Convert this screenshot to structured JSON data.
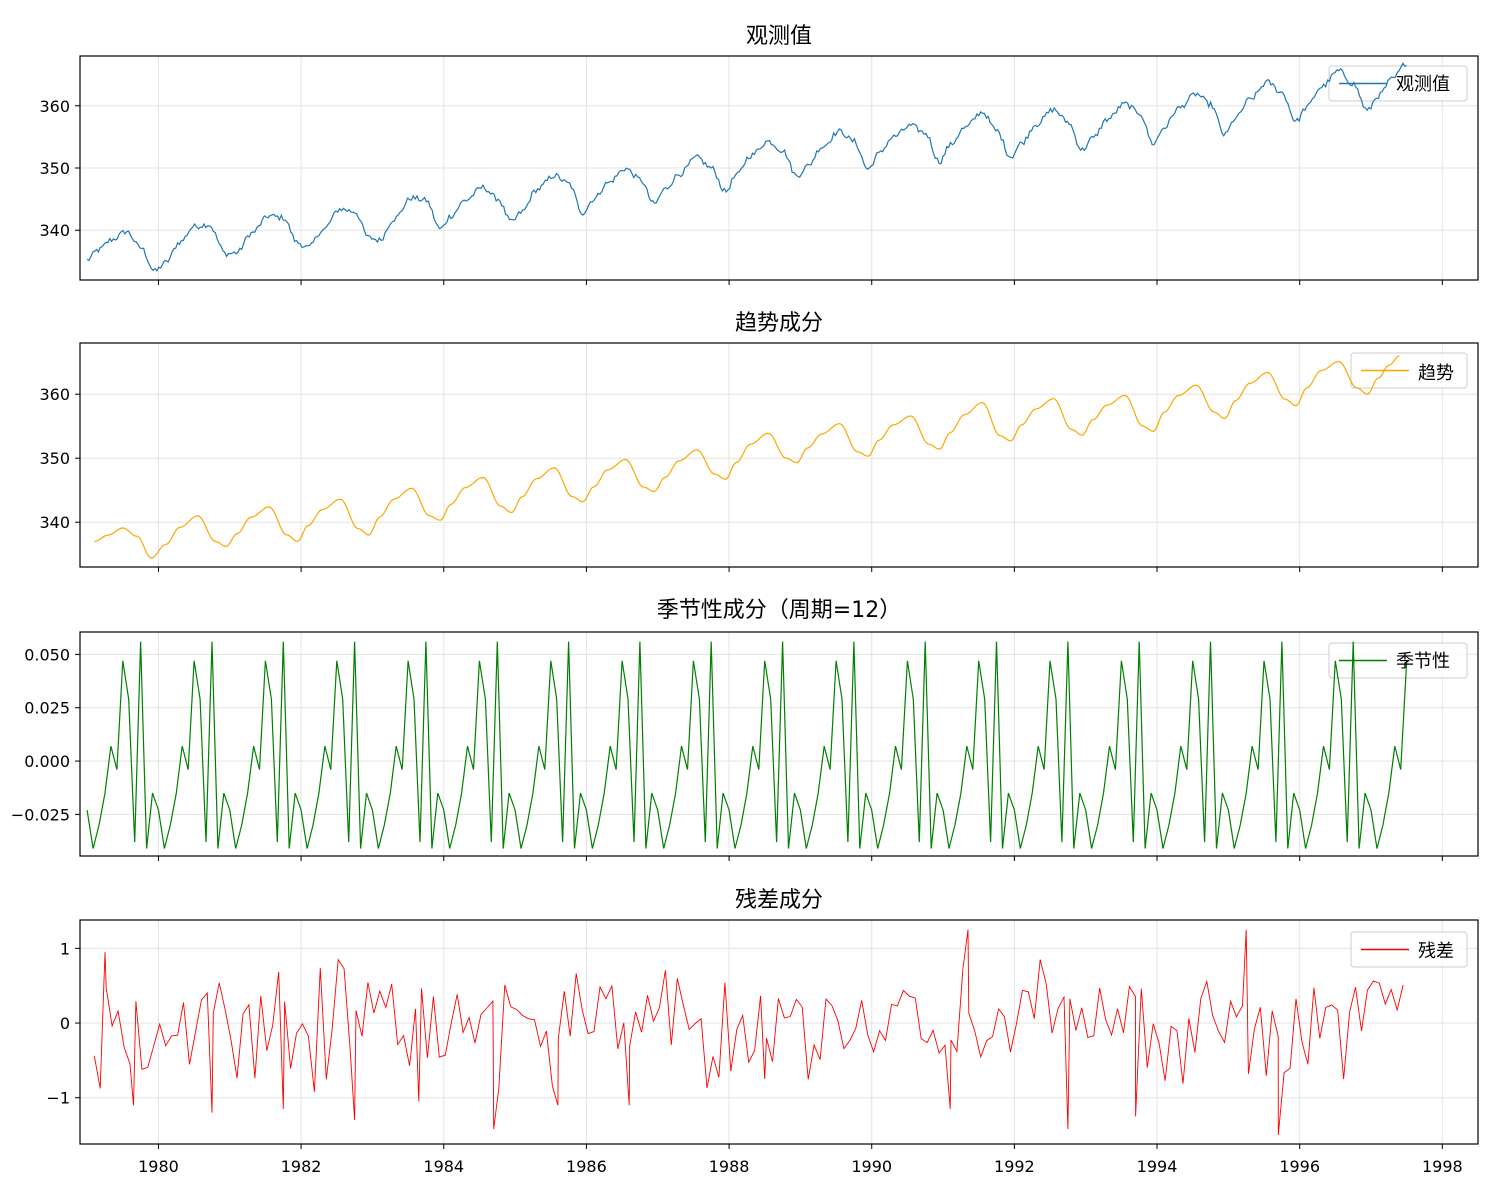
{
  "chart_data": [
    {
      "type": "line",
      "title": "观测值",
      "xlabel": "",
      "ylabel": "",
      "xlim": [
        1978.9,
        1998.5
      ],
      "ylim": [
        332,
        368
      ],
      "yticks": [
        340,
        350,
        360
      ],
      "xticks": [
        1980,
        1982,
        1984,
        1986,
        1988,
        1990,
        1992,
        1994,
        1996,
        1998
      ],
      "show_xtick_labels": false,
      "grid": true,
      "legend_position": "top-right",
      "series": [
        {
          "name": "观测值",
          "color": "#1f77b4",
          "x_start": 1979.0,
          "x_end": 1997.5,
          "points": [
            [
              1979.0,
              335.2
            ],
            [
              1979.15,
              336.8
            ],
            [
              1979.35,
              338.5
            ],
            [
              1979.55,
              339.8
            ],
            [
              1979.75,
              337.2
            ],
            [
              1979.95,
              333.4
            ],
            [
              1980.1,
              334.8
            ],
            [
              1980.3,
              338.1
            ],
            [
              1980.5,
              340.6
            ],
            [
              1980.7,
              340.9
            ],
            [
              1980.95,
              336.2
            ],
            [
              1981.1,
              336.4
            ],
            [
              1981.3,
              339.5
            ],
            [
              1981.55,
              342.3
            ],
            [
              1981.75,
              342.0
            ],
            [
              1981.95,
              338.0
            ],
            [
              1982.1,
              337.2
            ],
            [
              1982.3,
              340.0
            ],
            [
              1982.55,
              343.4
            ],
            [
              1982.75,
              343.0
            ],
            [
              1982.95,
              338.8
            ],
            [
              1983.1,
              338.4
            ],
            [
              1983.3,
              341.8
            ],
            [
              1983.55,
              345.2
            ],
            [
              1983.75,
              344.8
            ],
            [
              1983.95,
              340.2
            ],
            [
              1984.1,
              342.3
            ],
            [
              1984.3,
              344.8
            ],
            [
              1984.55,
              346.9
            ],
            [
              1984.75,
              345.1
            ],
            [
              1984.95,
              341.3
            ],
            [
              1985.1,
              343.0
            ],
            [
              1985.3,
              346.5
            ],
            [
              1985.55,
              348.8
            ],
            [
              1985.75,
              347.5
            ],
            [
              1985.95,
              342.8
            ],
            [
              1986.1,
              345.0
            ],
            [
              1986.3,
              347.6
            ],
            [
              1986.55,
              349.9
            ],
            [
              1986.75,
              348.2
            ],
            [
              1986.95,
              344.2
            ],
            [
              1987.1,
              346.6
            ],
            [
              1987.3,
              349.0
            ],
            [
              1987.55,
              351.7
            ],
            [
              1987.75,
              350.0
            ],
            [
              1987.95,
              346.2
            ],
            [
              1988.1,
              348.8
            ],
            [
              1988.3,
              352.0
            ],
            [
              1988.55,
              354.3
            ],
            [
              1988.75,
              352.8
            ],
            [
              1988.95,
              348.7
            ],
            [
              1989.1,
              350.3
            ],
            [
              1989.3,
              353.4
            ],
            [
              1989.55,
              355.9
            ],
            [
              1989.75,
              354.3
            ],
            [
              1989.95,
              349.8
            ],
            [
              1990.1,
              352.3
            ],
            [
              1990.3,
              355.0
            ],
            [
              1990.55,
              356.8
            ],
            [
              1990.75,
              355.6
            ],
            [
              1990.95,
              351.0
            ],
            [
              1991.1,
              353.7
            ],
            [
              1991.3,
              356.4
            ],
            [
              1991.55,
              359.0
            ],
            [
              1991.75,
              356.0
            ],
            [
              1991.95,
              351.8
            ],
            [
              1992.1,
              354.0
            ],
            [
              1992.3,
              357.0
            ],
            [
              1992.55,
              359.4
            ],
            [
              1992.75,
              357.4
            ],
            [
              1992.95,
              352.9
            ],
            [
              1993.1,
              354.8
            ],
            [
              1993.3,
              357.8
            ],
            [
              1993.55,
              360.3
            ],
            [
              1993.75,
              358.9
            ],
            [
              1993.95,
              353.9
            ],
            [
              1994.1,
              356.5
            ],
            [
              1994.3,
              359.6
            ],
            [
              1994.55,
              361.9
            ],
            [
              1994.75,
              360.2
            ],
            [
              1994.95,
              355.3
            ],
            [
              1995.1,
              358.0
            ],
            [
              1995.3,
              361.0
            ],
            [
              1995.55,
              363.8
            ],
            [
              1995.75,
              362.1
            ],
            [
              1995.95,
              357.5
            ],
            [
              1996.1,
              359.8
            ],
            [
              1996.3,
              363.0
            ],
            [
              1996.55,
              365.6
            ],
            [
              1996.75,
              363.5
            ],
            [
              1996.95,
              359.2
            ],
            [
              1997.1,
              361.6
            ],
            [
              1997.3,
              364.3
            ],
            [
              1997.5,
              366.9
            ]
          ]
        }
      ]
    },
    {
      "type": "line",
      "title": "趋势成分",
      "xlabel": "",
      "ylabel": "",
      "xlim": [
        1978.9,
        1998.5
      ],
      "ylim": [
        333,
        368
      ],
      "yticks": [
        340,
        350,
        360
      ],
      "xticks": [
        1980,
        1982,
        1984,
        1986,
        1988,
        1990,
        1992,
        1994,
        1996,
        1998
      ],
      "show_xtick_labels": false,
      "grid": true,
      "legend_position": "top-right",
      "series": [
        {
          "name": "趋势",
          "color": "#ffa500",
          "x_start": 1979.1,
          "x_end": 1997.4,
          "points": [
            [
              1979.1,
              337.0
            ],
            [
              1979.3,
              338.0
            ],
            [
              1979.5,
              339.1
            ],
            [
              1979.7,
              337.8
            ],
            [
              1979.9,
              334.4
            ],
            [
              1980.1,
              336.5
            ],
            [
              1980.3,
              339.2
            ],
            [
              1980.55,
              341.0
            ],
            [
              1980.8,
              337.0
            ],
            [
              1980.95,
              336.2
            ],
            [
              1981.1,
              338.2
            ],
            [
              1981.3,
              340.8
            ],
            [
              1981.55,
              342.4
            ],
            [
              1981.8,
              338.0
            ],
            [
              1981.95,
              337.0
            ],
            [
              1982.1,
              339.5
            ],
            [
              1982.3,
              342.0
            ],
            [
              1982.55,
              343.6
            ],
            [
              1982.8,
              339.0
            ],
            [
              1982.95,
              338.0
            ],
            [
              1983.1,
              340.8
            ],
            [
              1983.3,
              343.6
            ],
            [
              1983.55,
              345.3
            ],
            [
              1983.8,
              341.0
            ],
            [
              1983.95,
              340.3
            ],
            [
              1984.1,
              342.8
            ],
            [
              1984.3,
              345.4
            ],
            [
              1984.55,
              347.0
            ],
            [
              1984.8,
              342.5
            ],
            [
              1984.95,
              341.5
            ],
            [
              1985.1,
              344.0
            ],
            [
              1985.3,
              346.8
            ],
            [
              1985.55,
              348.5
            ],
            [
              1985.8,
              344.0
            ],
            [
              1985.95,
              343.2
            ],
            [
              1986.1,
              345.5
            ],
            [
              1986.3,
              348.2
            ],
            [
              1986.55,
              349.8
            ],
            [
              1986.8,
              345.5
            ],
            [
              1986.95,
              344.8
            ],
            [
              1987.1,
              347.0
            ],
            [
              1987.3,
              349.6
            ],
            [
              1987.55,
              351.3
            ],
            [
              1987.8,
              347.5
            ],
            [
              1987.95,
              346.7
            ],
            [
              1988.1,
              349.3
            ],
            [
              1988.3,
              352.2
            ],
            [
              1988.55,
              353.9
            ],
            [
              1988.8,
              350.0
            ],
            [
              1988.95,
              349.3
            ],
            [
              1989.1,
              351.6
            ],
            [
              1989.3,
              353.8
            ],
            [
              1989.55,
              355.4
            ],
            [
              1989.8,
              351.0
            ],
            [
              1989.95,
              350.3
            ],
            [
              1990.1,
              352.8
            ],
            [
              1990.3,
              355.2
            ],
            [
              1990.55,
              356.6
            ],
            [
              1990.8,
              352.2
            ],
            [
              1990.95,
              351.4
            ],
            [
              1991.1,
              354.0
            ],
            [
              1991.3,
              356.8
            ],
            [
              1991.55,
              358.7
            ],
            [
              1991.8,
              353.5
            ],
            [
              1991.95,
              352.7
            ],
            [
              1992.1,
              355.2
            ],
            [
              1992.3,
              357.7
            ],
            [
              1992.55,
              359.3
            ],
            [
              1992.8,
              354.5
            ],
            [
              1992.95,
              353.6
            ],
            [
              1993.1,
              356.0
            ],
            [
              1993.3,
              358.3
            ],
            [
              1993.55,
              359.8
            ],
            [
              1993.8,
              355.0
            ],
            [
              1993.95,
              354.2
            ],
            [
              1994.1,
              357.2
            ],
            [
              1994.3,
              359.8
            ],
            [
              1994.55,
              361.4
            ],
            [
              1994.8,
              357.2
            ],
            [
              1994.95,
              356.2
            ],
            [
              1995.1,
              359.0
            ],
            [
              1995.3,
              361.7
            ],
            [
              1995.55,
              363.4
            ],
            [
              1995.8,
              359.2
            ],
            [
              1995.95,
              358.2
            ],
            [
              1996.1,
              361.0
            ],
            [
              1996.3,
              363.7
            ],
            [
              1996.55,
              365.1
            ],
            [
              1996.8,
              361.0
            ],
            [
              1996.95,
              360.0
            ],
            [
              1997.1,
              362.5
            ],
            [
              1997.25,
              364.5
            ],
            [
              1997.4,
              366.0
            ]
          ]
        }
      ]
    },
    {
      "type": "line",
      "title": "季节性成分（周期=12）",
      "xlabel": "",
      "ylabel": "",
      "xlim": [
        1978.9,
        1998.5
      ],
      "ylim": [
        -0.0445,
        0.0605
      ],
      "yticks": [
        -0.025,
        0.0,
        0.025,
        0.05
      ],
      "ytick_labels": [
        "−0.025",
        "0.000",
        "0.025",
        "0.050"
      ],
      "xticks": [
        1980,
        1982,
        1984,
        1986,
        1988,
        1990,
        1992,
        1994,
        1996,
        1998
      ],
      "show_xtick_labels": false,
      "grid": true,
      "legend_position": "top-right",
      "series": [
        {
          "name": "季节性",
          "color": "#008000",
          "x_start": 1979.0,
          "x_end": 1997.5,
          "period_values": [
            -0.023,
            -0.041,
            -0.03,
            -0.015,
            0.007,
            -0.004,
            0.047,
            0.029,
            -0.038,
            0.056,
            -0.041,
            -0.015
          ]
        }
      ]
    },
    {
      "type": "line",
      "title": "残差成分",
      "xlabel": "",
      "ylabel": "",
      "xlim": [
        1978.9,
        1998.5
      ],
      "ylim": [
        -1.62,
        1.38
      ],
      "yticks": [
        -1,
        0,
        1
      ],
      "ytick_labels": [
        "−1",
        "0",
        "1"
      ],
      "xticks": [
        1980,
        1982,
        1984,
        1986,
        1988,
        1990,
        1992,
        1994,
        1996,
        1998
      ],
      "xtick_labels": [
        "1980",
        "1982",
        "1984",
        "1986",
        "1988",
        "1990",
        "1992",
        "1994",
        "1996",
        "1998"
      ],
      "show_xtick_labels": true,
      "grid": true,
      "legend_position": "top-right",
      "series": [
        {
          "name": "残差",
          "color": "#ff0000",
          "x_start": 1979.1,
          "x_end": 1997.45,
          "notable_points": [
            [
              1979.25,
              0.95
            ],
            [
              1979.65,
              -1.1
            ],
            [
              1980.75,
              -1.2
            ],
            [
              1981.75,
              -1.15
            ],
            [
              1982.75,
              -1.3
            ],
            [
              1983.65,
              -1.05
            ],
            [
              1984.7,
              -1.42
            ],
            [
              1985.6,
              -1.1
            ],
            [
              1986.6,
              -1.1
            ],
            [
              1988.5,
              -0.75
            ],
            [
              1991.1,
              -1.15
            ],
            [
              1991.35,
              1.25
            ],
            [
              1992.75,
              -1.42
            ],
            [
              1993.7,
              -1.25
            ],
            [
              1995.25,
              1.25
            ],
            [
              1995.7,
              -1.5
            ]
          ],
          "amplitude": 0.45
        }
      ]
    }
  ]
}
